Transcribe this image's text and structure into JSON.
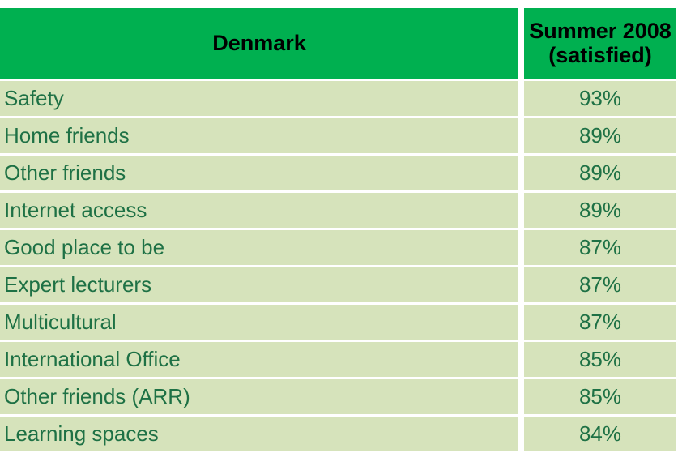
{
  "table": {
    "col1_header": "Denmark",
    "col2_header_line1": "Summer 2008",
    "col2_header_line2": "(satisfied)",
    "rows": [
      {
        "label": "Safety",
        "value": "93%"
      },
      {
        "label": "Home friends",
        "value": "89%"
      },
      {
        "label": "Other friends",
        "value": "89%"
      },
      {
        "label": "Internet access",
        "value": "89%"
      },
      {
        "label": "Good place to be",
        "value": "87%"
      },
      {
        "label": "Expert lecturers",
        "value": "87%"
      },
      {
        "label": "Multicultural",
        "value": "87%"
      },
      {
        "label": "International Office",
        "value": "85%"
      },
      {
        "label": "Other friends (ARR)",
        "value": "85%"
      },
      {
        "label": "Learning spaces",
        "value": "84%"
      }
    ]
  },
  "colors": {
    "header_bg": "#00B050",
    "header_text": "#000000",
    "row_bg": "#D6E3BB",
    "row_text": "#1E7145",
    "gridline_gap": "#FFFFFF"
  },
  "chart_data": {
    "type": "table",
    "title": "Denmark — Summer 2008 (satisfied)",
    "columns": [
      "Denmark",
      "Summer 2008 (satisfied)"
    ],
    "categories": [
      "Safety",
      "Home friends",
      "Other friends",
      "Internet access",
      "Good place to be",
      "Expert lecturers",
      "Multicultural",
      "International Office",
      "Other friends (ARR)",
      "Learning spaces"
    ],
    "values": [
      93,
      89,
      89,
      89,
      87,
      87,
      87,
      85,
      85,
      84
    ],
    "value_unit": "%"
  }
}
